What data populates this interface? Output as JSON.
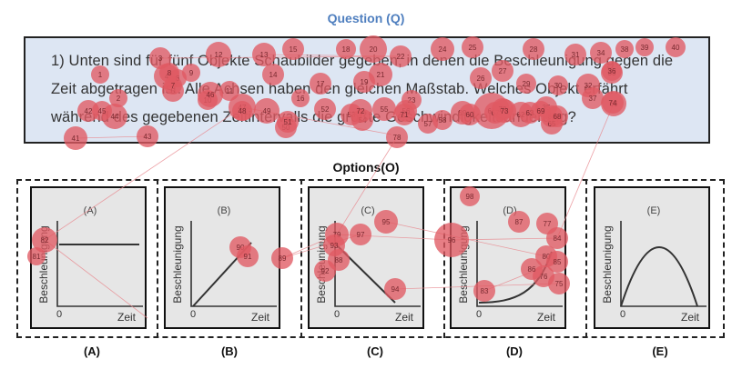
{
  "header": {
    "question_label": "Question (Q)",
    "options_label": "Options(O)"
  },
  "question": {
    "lines": [
      "1) Unten sind für fünf Objekte Schaubilder gegeben, in denen die Beschleunigung gegen die",
      "Zeit abgetragen ist. Alle Achsen haben den gleichen Maßstab. Welches Objekt erfährt",
      "während des gegebenen Zeitintervalls die größte Geschwindigkeitsänderung?"
    ]
  },
  "options": [
    {
      "label": "(A)",
      "panel_title": "(A)",
      "y_axis": "Beschleunigung",
      "x_axis": "Zeit",
      "origin": "0",
      "curve": "constant"
    },
    {
      "label": "(B)",
      "panel_title": "(B)",
      "y_axis": "Beschleunigung",
      "x_axis": "Zeit",
      "origin": "0",
      "curve": "linear-increase"
    },
    {
      "label": "(C)",
      "panel_title": "(C)",
      "y_axis": "Beschleunigung",
      "x_axis": "Zeit",
      "origin": "0",
      "curve": "linear-decrease"
    },
    {
      "label": "(D)",
      "panel_title": "(D)",
      "y_axis": "Beschleunigung",
      "x_axis": "Zeit",
      "origin": "0",
      "curve": "exponential-increase"
    },
    {
      "label": "(E)",
      "panel_title": "(E)",
      "y_axis": "Beschleunigung",
      "x_axis": "Zeit",
      "origin": "0",
      "curve": "parabola"
    }
  ],
  "gaze": {
    "fill_color": "#e05a63",
    "fixations": [
      "1",
      "2",
      "3",
      "4",
      "5",
      "6",
      "7",
      "8",
      "9",
      "10",
      "11",
      "12",
      "13",
      "14",
      "15",
      "16",
      "17",
      "18",
      "19",
      "20",
      "21",
      "22",
      "23",
      "24",
      "25",
      "26",
      "27",
      "28",
      "29",
      "30",
      "31",
      "32",
      "33",
      "34",
      "35",
      "36",
      "37",
      "38",
      "39",
      "40",
      "41",
      "42",
      "43",
      "44",
      "45",
      "46",
      "47",
      "48",
      "49",
      "50",
      "51",
      "52",
      "53",
      "54",
      "55",
      "56",
      "57",
      "58",
      "59",
      "60",
      "61",
      "62",
      "63",
      "64",
      "65",
      "66",
      "67",
      "68",
      "69",
      "70",
      "71",
      "72",
      "73",
      "74",
      "75",
      "76",
      "77",
      "78",
      "79",
      "80",
      "81",
      "82",
      "83",
      "84",
      "85",
      "86",
      "87",
      "88",
      "89",
      "90",
      "91",
      "92",
      "93",
      "94",
      "95",
      "96",
      "97",
      "98"
    ]
  }
}
